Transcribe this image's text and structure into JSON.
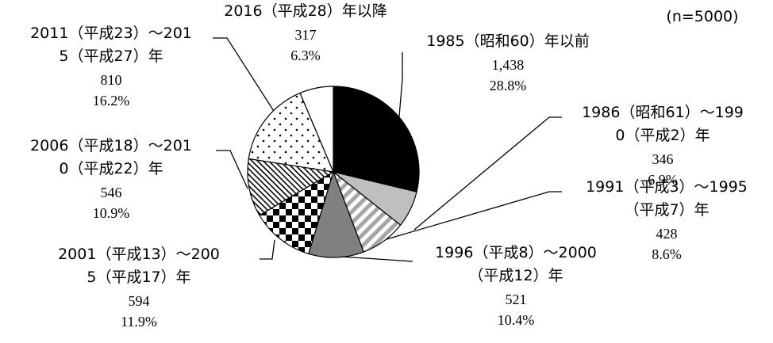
{
  "chart_data": {
    "type": "pie",
    "note": "(n=5000)",
    "categories": [
      "1985（昭和60）年以前",
      "1986（昭和61）～1990（平成2）年",
      "1991（平成3）～1995（平成7）年",
      "1996（平成8）～2000（平成12）年",
      "2001（平成13）～2005（平成17）年",
      "2006（平成18）～2010（平成22）年",
      "2011（平成23）～2015（平成27）年",
      "2016（平成28）年以降"
    ],
    "values": [
      1438,
      346,
      428,
      521,
      594,
      546,
      810,
      317
    ],
    "value_labels": [
      "1,438",
      "346",
      "428",
      "521",
      "594",
      "546",
      "810",
      "317"
    ],
    "percentages": [
      28.8,
      6.9,
      8.6,
      10.4,
      11.9,
      10.9,
      16.2,
      6.3
    ],
    "percentage_labels": [
      "28.8%",
      "6.9%",
      "8.6%",
      "10.4%",
      "11.9%",
      "10.9%",
      "16.2%",
      "6.3%"
    ],
    "colors": [
      "#000000",
      "#bfbfbf",
      "url(#stripes)",
      "#808080",
      "url(#checker)",
      "url(#diag)",
      "url(#dots)",
      "#ffffff"
    ]
  }
}
